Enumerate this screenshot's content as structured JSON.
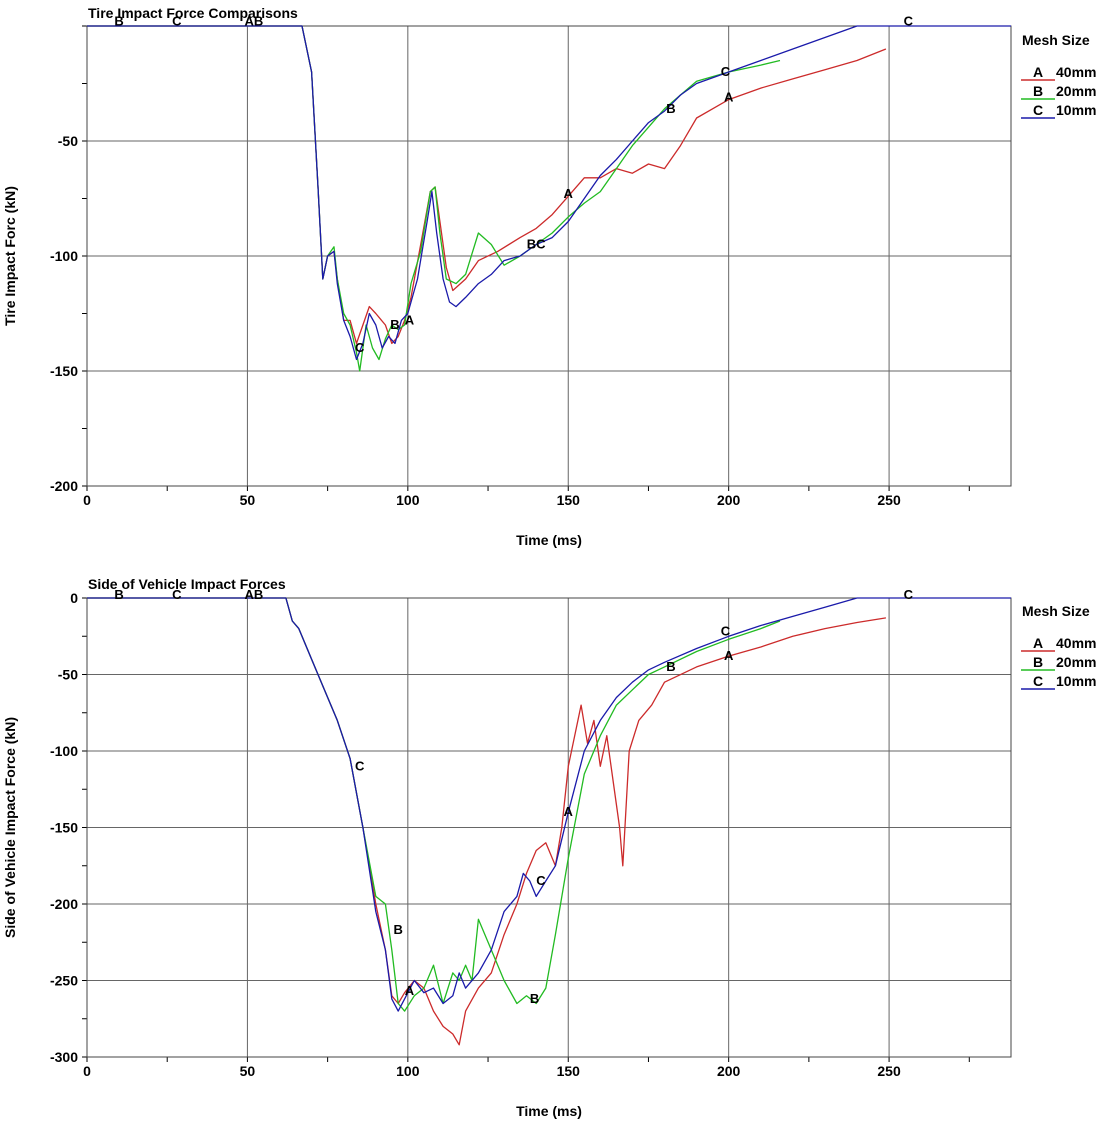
{
  "chart_data": [
    {
      "type": "line",
      "title": "Tire Impact Force Comparisons",
      "xlabel": "Time (ms)",
      "ylabel": "Tire Impact Forc (kN)",
      "xlim": [
        0,
        288
      ],
      "ylim": [
        -200,
        0
      ],
      "x_ticks": [
        0,
        50,
        100,
        150,
        200,
        250
      ],
      "y_ticks": [
        -50,
        -100,
        -150,
        -200
      ],
      "grid": true,
      "legend_title": "Mesh Size",
      "legend_position": "right",
      "series": [
        {
          "name": "40mm",
          "marker": "A",
          "color": "#cc2b2b",
          "x": [
            0,
            50,
            67,
            70,
            72,
            73.5,
            75,
            77,
            78,
            80,
            82,
            84,
            86,
            88,
            90,
            93,
            95,
            97,
            99,
            101,
            104,
            107,
            108.5,
            110,
            112,
            114,
            118,
            122,
            128,
            135,
            140,
            145,
            150,
            155,
            160,
            165,
            170,
            175,
            180,
            185,
            190,
            195,
            200,
            210,
            220,
            230,
            240,
            249
          ],
          "y": [
            0,
            0,
            0,
            -20,
            -70,
            -110,
            -100,
            -98,
            -110,
            -128,
            -128,
            -138,
            -130,
            -122,
            -125,
            -130,
            -138,
            -135,
            -128,
            -118,
            -95,
            -72,
            -70,
            -85,
            -105,
            -115,
            -110,
            -102,
            -98,
            -92,
            -88,
            -82,
            -74,
            -66,
            -66,
            -62,
            -64,
            -60,
            -62,
            -52,
            -40,
            -36,
            -32,
            -27,
            -23,
            -19,
            -15,
            -10
          ]
        },
        {
          "name": "20mm",
          "marker": "B",
          "color": "#22bb22",
          "x": [
            0,
            50,
            67,
            70,
            72,
            73.5,
            75,
            77,
            78,
            80,
            82,
            84,
            85,
            87,
            89,
            91,
            93,
            95,
            97,
            99,
            101,
            104,
            107,
            108.5,
            110,
            112,
            115,
            118,
            122,
            126,
            130,
            135,
            140,
            145,
            150,
            155,
            160,
            165,
            170,
            175,
            180,
            185,
            190,
            200,
            210,
            216
          ],
          "y": [
            0,
            0,
            0,
            -20,
            -70,
            -110,
            -100,
            -96,
            -110,
            -125,
            -130,
            -142,
            -150,
            -130,
            -140,
            -145,
            -136,
            -130,
            -132,
            -130,
            -112,
            -98,
            -72,
            -70,
            -90,
            -110,
            -112,
            -108,
            -90,
            -95,
            -104,
            -100,
            -95,
            -90,
            -83,
            -77,
            -72,
            -62,
            -52,
            -44,
            -36,
            -30,
            -24,
            -20,
            -17,
            -15
          ]
        },
        {
          "name": "10mm",
          "marker": "C",
          "color": "#1a1aaa",
          "x": [
            0,
            50,
            67,
            70,
            72,
            73.5,
            75,
            77,
            78,
            80,
            82,
            84,
            86,
            88,
            90,
            92,
            94,
            96,
            98,
            100,
            103,
            106,
            107.5,
            109,
            111,
            113,
            115,
            118,
            122,
            126,
            130,
            135,
            140,
            145,
            150,
            155,
            160,
            165,
            170,
            175,
            180,
            185,
            190,
            200,
            210,
            220,
            230,
            240,
            288
          ],
          "y": [
            0,
            0,
            0,
            -20,
            -70,
            -110,
            -100,
            -98,
            -112,
            -128,
            -135,
            -145,
            -138,
            -125,
            -130,
            -140,
            -135,
            -138,
            -128,
            -125,
            -110,
            -85,
            -72,
            -90,
            -110,
            -120,
            -122,
            -118,
            -112,
            -108,
            -102,
            -100,
            -95,
            -92,
            -85,
            -75,
            -65,
            -58,
            -50,
            -42,
            -37,
            -30,
            -25,
            -20,
            -15,
            -10,
            -5,
            0,
            0
          ]
        }
      ],
      "marker_labels": [
        {
          "text": "B",
          "x": 10,
          "y": 2
        },
        {
          "text": "C",
          "x": 28,
          "y": 2
        },
        {
          "text": "AB",
          "x": 52,
          "y": 2
        },
        {
          "text": "C",
          "x": 256,
          "y": 2
        },
        {
          "text": "C",
          "x": 85,
          "y": -140
        },
        {
          "text": "B",
          "x": 96,
          "y": -130
        },
        {
          "text": "A",
          "x": 100.5,
          "y": -128
        },
        {
          "text": "A",
          "x": 150,
          "y": -73
        },
        {
          "text": "BC",
          "x": 140,
          "y": -95
        },
        {
          "text": "B",
          "x": 182,
          "y": -36
        },
        {
          "text": "C",
          "x": 199,
          "y": -20
        },
        {
          "text": "A",
          "x": 200,
          "y": -31
        }
      ]
    },
    {
      "type": "line",
      "title": "Side of Vehicle Impact Forces",
      "xlabel": "Time (ms)",
      "ylabel": "Side of Vehicle Impact Force (kN)",
      "xlim": [
        0,
        288
      ],
      "ylim": [
        -300,
        0
      ],
      "x_ticks": [
        0,
        50,
        100,
        150,
        200,
        250
      ],
      "y_ticks": [
        0,
        -50,
        -100,
        -150,
        -200,
        -250,
        -300
      ],
      "grid": true,
      "legend_title": "Mesh Size",
      "legend_position": "right",
      "series": [
        {
          "name": "40mm",
          "marker": "A",
          "color": "#cc2b2b",
          "x": [
            0,
            50,
            62,
            64,
            66,
            70,
            74,
            78,
            82,
            86,
            90,
            93,
            95,
            97,
            99,
            102,
            105,
            108,
            111,
            114,
            116,
            118,
            122,
            126,
            130,
            134,
            137,
            140,
            143,
            146,
            148,
            150,
            152,
            154,
            156,
            158,
            160,
            162,
            164,
            166,
            167,
            169,
            172,
            176,
            180,
            190,
            200,
            210,
            220,
            230,
            240,
            249
          ],
          "y": [
            0,
            0,
            0,
            -15,
            -20,
            -40,
            -60,
            -80,
            -105,
            -150,
            -200,
            -230,
            -260,
            -265,
            -258,
            -250,
            -255,
            -270,
            -280,
            -285,
            -292,
            -270,
            -255,
            -245,
            -220,
            -200,
            -180,
            -165,
            -160,
            -175,
            -150,
            -110,
            -90,
            -70,
            -95,
            -80,
            -110,
            -90,
            -120,
            -150,
            -175,
            -100,
            -80,
            -70,
            -55,
            -45,
            -38,
            -32,
            -25,
            -20,
            -16,
            -13
          ]
        },
        {
          "name": "20mm",
          "marker": "B",
          "color": "#22bb22",
          "x": [
            0,
            50,
            62,
            64,
            66,
            70,
            74,
            78,
            82,
            86,
            90,
            93,
            95,
            97,
            99,
            102,
            105,
            108,
            111,
            114,
            116,
            118,
            120,
            122,
            126,
            130,
            134,
            137,
            140,
            143,
            146,
            150,
            155,
            160,
            165,
            170,
            175,
            180,
            190,
            200,
            210,
            216
          ],
          "y": [
            0,
            0,
            0,
            -15,
            -20,
            -40,
            -60,
            -80,
            -105,
            -150,
            -195,
            -200,
            -230,
            -265,
            -270,
            -260,
            -255,
            -240,
            -265,
            -245,
            -250,
            -240,
            -250,
            -210,
            -230,
            -250,
            -265,
            -260,
            -265,
            -255,
            -220,
            -170,
            -115,
            -90,
            -70,
            -60,
            -50,
            -45,
            -35,
            -27,
            -20,
            -15
          ]
        },
        {
          "name": "10mm",
          "marker": "C",
          "color": "#1a1aaa",
          "x": [
            0,
            50,
            62,
            64,
            66,
            70,
            74,
            78,
            82,
            86,
            90,
            93,
            95,
            97,
            99,
            102,
            105,
            108,
            111,
            114,
            116,
            118,
            122,
            126,
            130,
            134,
            136,
            138,
            140,
            143,
            146,
            150,
            155,
            160,
            165,
            170,
            175,
            180,
            190,
            200,
            210,
            220,
            230,
            240,
            288
          ],
          "y": [
            0,
            0,
            0,
            -15,
            -20,
            -40,
            -60,
            -80,
            -105,
            -150,
            -205,
            -230,
            -262,
            -270,
            -262,
            -250,
            -258,
            -255,
            -265,
            -260,
            -245,
            -255,
            -245,
            -230,
            -205,
            -195,
            -180,
            -185,
            -195,
            -185,
            -175,
            -140,
            -100,
            -80,
            -65,
            -55,
            -47,
            -42,
            -33,
            -25,
            -18,
            -12,
            -6,
            0,
            0
          ]
        }
      ],
      "marker_labels": [
        {
          "text": "B",
          "x": 10,
          "y": 2
        },
        {
          "text": "C",
          "x": 28,
          "y": 2
        },
        {
          "text": "AB",
          "x": 52,
          "y": 2
        },
        {
          "text": "C",
          "x": 256,
          "y": 2
        },
        {
          "text": "C",
          "x": 85,
          "y": -110
        },
        {
          "text": "B",
          "x": 97,
          "y": -217
        },
        {
          "text": "A",
          "x": 100.5,
          "y": -257
        },
        {
          "text": "A",
          "x": 150,
          "y": -140
        },
        {
          "text": "C",
          "x": 141.5,
          "y": -185
        },
        {
          "text": "B",
          "x": 139.5,
          "y": -262
        },
        {
          "text": "B",
          "x": 182,
          "y": -45
        },
        {
          "text": "C",
          "x": 199,
          "y": -22
        },
        {
          "text": "A",
          "x": 200,
          "y": -38
        }
      ]
    }
  ]
}
